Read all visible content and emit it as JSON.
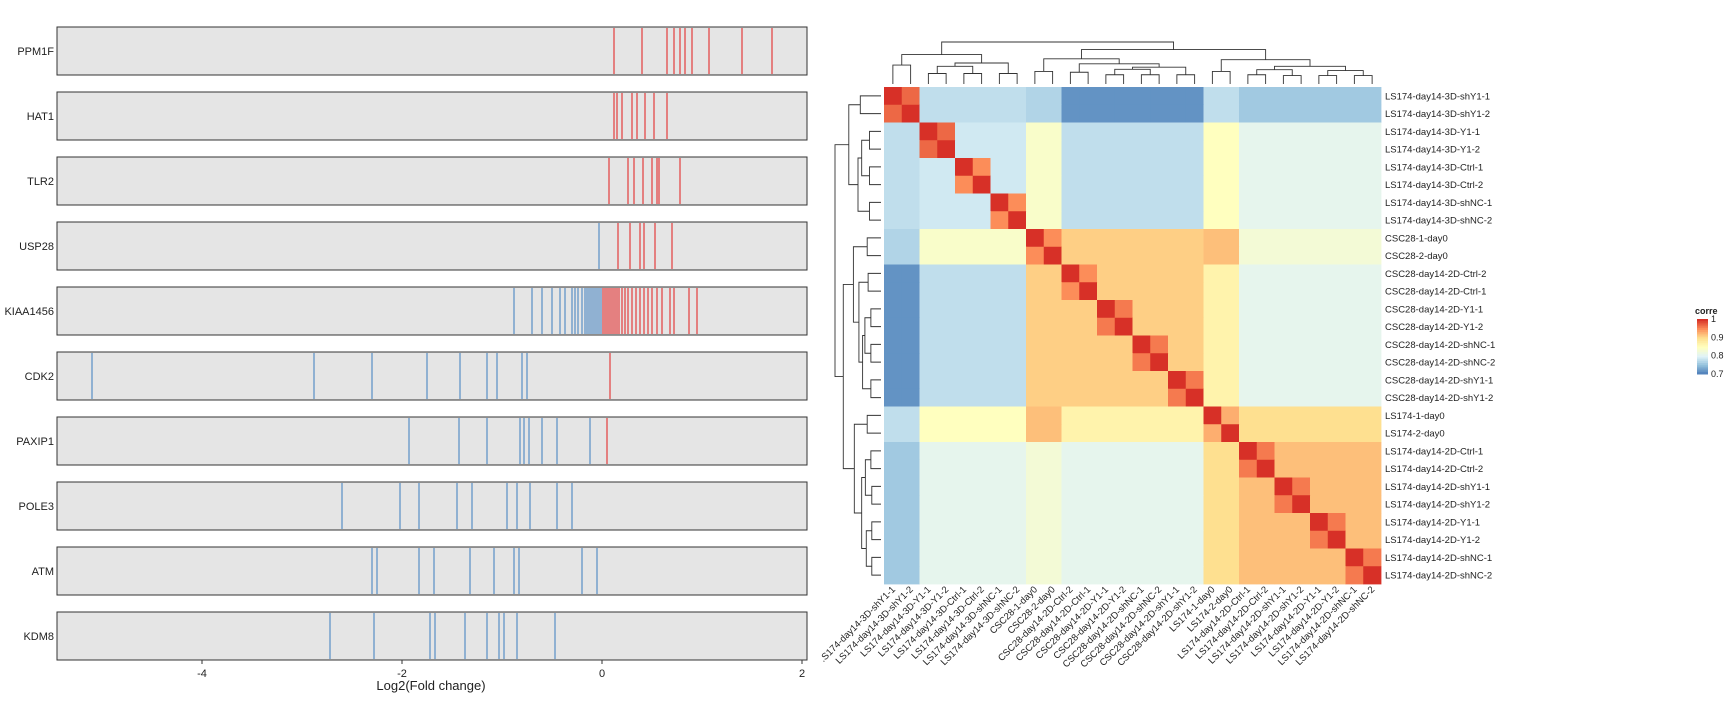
{
  "chart_data": [
    {
      "type": "barcode",
      "xlabel": "Log2(Fold change)",
      "xlim": [
        -5.45,
        2.05
      ],
      "x_ticks": [
        -4,
        -2,
        0,
        2
      ],
      "x_tick_labels": [
        "-4",
        "-2",
        "0",
        "2"
      ],
      "colors": {
        "up": "#e31a1c",
        "down": "#3a7dbf",
        "panel": "#e5e5e5"
      },
      "genes": [
        {
          "name": "PPM1F",
          "values": [
            0.12,
            0.4,
            0.65,
            0.72,
            0.78,
            0.83,
            0.9,
            1.07,
            1.4,
            1.7
          ]
        },
        {
          "name": "HAT1",
          "values": [
            0.12,
            0.15,
            0.2,
            0.3,
            0.35,
            0.43,
            0.52,
            0.65
          ]
        },
        {
          "name": "TLR2",
          "values": [
            0.07,
            0.26,
            0.32,
            0.41,
            0.5,
            0.55,
            0.57,
            0.78
          ]
        },
        {
          "name": "USP28",
          "values": [
            -0.03,
            0.16,
            0.28,
            0.38,
            0.42,
            0.53,
            0.7
          ]
        },
        {
          "name": "KIAA1456",
          "values": [
            -0.88,
            -0.7,
            -0.6,
            -0.5,
            -0.42,
            -0.37,
            -0.3,
            -0.27,
            -0.24,
            -0.2,
            -0.17,
            -0.15,
            -0.13,
            -0.11,
            -0.09,
            -0.07,
            -0.05,
            -0.03,
            -0.01,
            0.01,
            0.03,
            0.05,
            0.07,
            0.09,
            0.11,
            0.13,
            0.15,
            0.17,
            0.2,
            0.23,
            0.26,
            0.3,
            0.34,
            0.38,
            0.42,
            0.46,
            0.5,
            0.55,
            0.6,
            0.68,
            0.72,
            0.87,
            0.95
          ]
        },
        {
          "name": "CDK2",
          "values": [
            -5.1,
            -2.88,
            -2.3,
            -1.75,
            -1.42,
            -1.15,
            -1.05,
            -0.8,
            -0.75,
            0.08
          ]
        },
        {
          "name": "PAXIP1",
          "values": [
            -1.93,
            -1.43,
            -1.15,
            -0.82,
            -0.78,
            -0.73,
            -0.6,
            -0.45,
            -0.12,
            0.05
          ]
        },
        {
          "name": "POLE3",
          "values": [
            -2.6,
            -2.02,
            -1.83,
            -1.45,
            -1.3,
            -0.95,
            -0.85,
            -0.72,
            -0.45,
            -0.3
          ]
        },
        {
          "name": "ATM",
          "values": [
            -2.3,
            -2.25,
            -1.83,
            -1.68,
            -1.32,
            -1.08,
            -0.88,
            -0.83,
            -0.2,
            -0.05
          ]
        },
        {
          "name": "KDM8",
          "values": [
            -2.72,
            -2.28,
            -1.72,
            -1.67,
            -1.37,
            -1.15,
            -1.03,
            -0.98,
            -0.85,
            -0.47
          ]
        }
      ]
    },
    {
      "type": "heatmap",
      "rows": [
        "LS174-day14-3D-shY1-1",
        "LS174-day14-3D-shY1-2",
        "LS174-day14-3D-Y1-1",
        "LS174-day14-3D-Y1-2",
        "LS174-day14-3D-Ctrl-1",
        "LS174-day14-3D-Ctrl-2",
        "LS174-day14-3D-shNC-1",
        "LS174-day14-3D-shNC-2",
        "CSC28-1-day0",
        "CSC28-2-day0",
        "CSC28-day14-2D-Ctrl-2",
        "CSC28-day14-2D-Ctrl-1",
        "CSC28-day14-2D-Y1-1",
        "CSC28-day14-2D-Y1-2",
        "CSC28-day14-2D-shNC-1",
        "CSC28-day14-2D-shNC-2",
        "CSC28-day14-2D-shY1-1",
        "CSC28-day14-2D-shY1-2",
        "LS174-1-day0",
        "LS174-2-day0",
        "LS174-day14-2D-Ctrl-1",
        "LS174-day14-2D-Ctrl-2",
        "LS174-day14-2D-shY1-1",
        "LS174-day14-2D-shY1-2",
        "LS174-day14-2D-Y1-1",
        "LS174-day14-2D-Y1-2",
        "LS174-day14-2D-shNC-1",
        "LS174-day14-2D-shNC-2"
      ],
      "column_labels": [
        ".S174-day14-3D-shY1-1",
        "LS174-day14-3D-shY1-2",
        "LS174-day14-3D-Y1-1",
        "LS174-day14-3D-Y1-2",
        "LS174-day14-3D-Ctrl-1",
        "LS174-day14-3D-Ctrl-2",
        "LS174-day14-3D-shNC-1",
        "LS174-day14-3D-shNC-2",
        "CSC28-1-day0",
        "CSC28-2-day0",
        "CSC28-day14-2D-Ctrl-2",
        "CSC28-day14-2D-Ctrl-1",
        "CSC28-day14-2D-Y1-1",
        "CSC28-day14-2D-Y1-2",
        "CSC28-day14-2D-shNC-1",
        "CSC28-day14-2D-shNC-2",
        "CSC28-day14-2D-shY1-1",
        "CSC28-day14-2D-shY1-2",
        "LS174-1-day0",
        "LS174-2-day0",
        "LS174-day14-2D-Ctrl-1",
        "LS174-day14-2D-Ctrl-2",
        "LS174-day14-2D-shY1-1",
        "LS174-day14-2D-shY1-2",
        "LS174-day14-2D-Y1-1",
        "LS174-day14-2D-Y1-2",
        "LS174-day14-2D-shNC-1",
        "LS174-day14-2D-shNC-2"
      ],
      "groups": [
        "A",
        "A",
        "B",
        "B",
        "B",
        "B",
        "B",
        "B",
        "C",
        "C",
        "D",
        "D",
        "D",
        "D",
        "D",
        "D",
        "D",
        "D",
        "E",
        "E",
        "F",
        "F",
        "F",
        "F",
        "F",
        "F",
        "F",
        "F"
      ],
      "pair_correlation": [
        0.97,
        0.97,
        0.95,
        0.95,
        0.95,
        0.95
      ],
      "block_correlation": {
        "A": {
          "A": 0.8,
          "B": 0.78,
          "C": 0.77,
          "D": 0.72,
          "E": 0.78,
          "F": 0.76
        },
        "B": {
          "A": 0.78,
          "B": 0.79,
          "C": 0.84,
          "D": 0.78,
          "E": 0.85,
          "F": 0.81
        },
        "C": {
          "A": 0.77,
          "B": 0.84,
          "C": 0.95,
          "D": 0.91,
          "E": 0.92,
          "F": 0.83
        },
        "D": {
          "A": 0.72,
          "B": 0.78,
          "C": 0.91,
          "D": 0.91,
          "E": 0.87,
          "F": 0.81
        },
        "E": {
          "A": 0.78,
          "B": 0.85,
          "C": 0.92,
          "D": 0.87,
          "E": 0.93,
          "F": 0.9
        },
        "F": {
          "A": 0.76,
          "B": 0.81,
          "C": 0.83,
          "D": 0.81,
          "E": 0.9,
          "F": 0.92
        }
      },
      "legend": {
        "title": "corre",
        "ticks": [
          1,
          0.9,
          0.8,
          0.7
        ],
        "tick_labels": [
          "1",
          "0.9",
          "0.8",
          "0.7"
        ],
        "range": [
          0.7,
          1.0
        ]
      },
      "colorscale": [
        "#4575b4",
        "#91bfdb",
        "#e0f3f8",
        "#ffffbf",
        "#fee090",
        "#fc8d59",
        "#d73027"
      ],
      "dendrogram": true
    }
  ]
}
